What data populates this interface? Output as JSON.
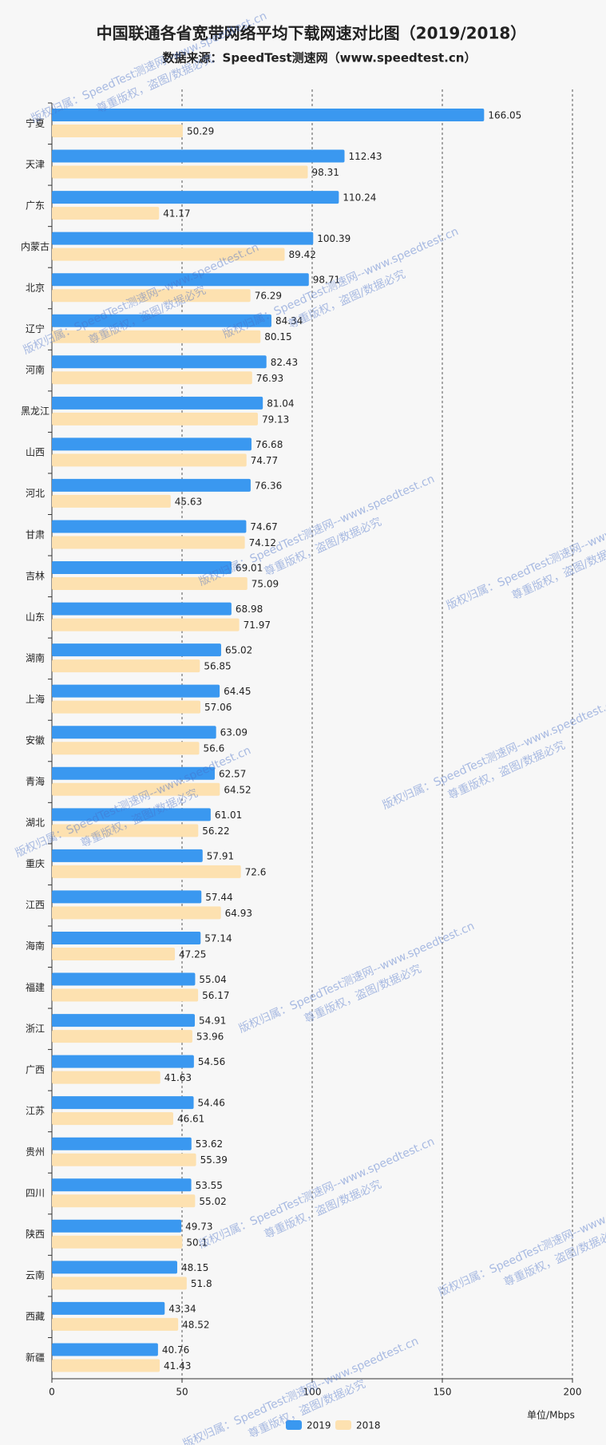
{
  "chart_data": {
    "type": "hbar",
    "title": "中国联通各省宽带网络平均下载网速对比图（2019/2018）",
    "subtitle": "数据来源：SpeedTest测速网（www.speedtest.cn）",
    "unit_label": "单位/Mbps",
    "watermark": [
      "版权归属：SpeedTest测速网--www.speedtest.cn",
      "尊重版权，盗图/数据必究"
    ],
    "categories": [
      "宁夏",
      "天津",
      "广东",
      "内蒙古",
      "北京",
      "辽宁",
      "河南",
      "黑龙江",
      "山西",
      "河北",
      "甘肃",
      "吉林",
      "山东",
      "湖南",
      "上海",
      "安徽",
      "青海",
      "湖北",
      "重庆",
      "江西",
      "海南",
      "福建",
      "浙江",
      "广西",
      "江苏",
      "贵州",
      "四川",
      "陕西",
      "云南",
      "西藏",
      "新疆"
    ],
    "series": [
      {
        "name": "2019",
        "color": "#3a98f0",
        "values": [
          166.05,
          112.43,
          110.24,
          100.39,
          98.71,
          84.34,
          82.43,
          81.04,
          76.68,
          76.36,
          74.67,
          69.01,
          68.98,
          65.02,
          64.45,
          63.09,
          62.57,
          61.01,
          57.91,
          57.44,
          57.14,
          55.04,
          54.91,
          54.56,
          54.46,
          53.62,
          53.55,
          49.73,
          48.15,
          43.34,
          40.76
        ]
      },
      {
        "name": "2018",
        "color": "#fde1b0",
        "values": [
          50.29,
          98.31,
          41.17,
          89.42,
          76.29,
          80.15,
          76.93,
          79.13,
          74.77,
          45.63,
          74.12,
          75.09,
          71.97,
          56.85,
          57.06,
          56.6,
          64.52,
          56.22,
          72.6,
          64.93,
          47.25,
          56.17,
          53.96,
          41.63,
          46.61,
          55.39,
          55.02,
          50.1,
          51.8,
          48.52,
          41.43
        ]
      }
    ],
    "xlim": [
      0,
      200
    ],
    "xticks": [
      0,
      50,
      100,
      150,
      200
    ],
    "grid": true,
    "legend": "bottom"
  }
}
